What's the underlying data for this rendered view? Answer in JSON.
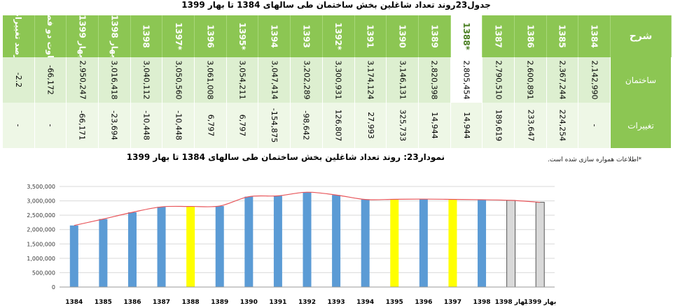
{
  "table": {
    "title": "جدول23روند تعداد شاغلین بخش ساختمان طی سالهای 1384 تا بهار 1399",
    "header_label": "شرح",
    "row_labels": [
      "ساختمان",
      "تغییرات"
    ],
    "columns": [
      {
        "header": "1384",
        "v1": "2,142,990",
        "v2": "-"
      },
      {
        "header": "1385",
        "v1": "2,367,244",
        "v2": "224,254"
      },
      {
        "header": "1386",
        "v1": "2,600,891",
        "v2": "233,647"
      },
      {
        "header": "1387",
        "v1": "2,790,510",
        "v2": "189,619"
      },
      {
        "header": "1388*",
        "v1": "2,805,454",
        "v2": "14,944",
        "highlight": true
      },
      {
        "header": "1389",
        "v1": "2,820,398",
        "v2": "14,944"
      },
      {
        "header": "1390",
        "v1": "3,146,131",
        "v2": "325,733"
      },
      {
        "header": "1391",
        "v1": "3,174,124",
        "v2": "27,993"
      },
      {
        "header": "1392*",
        "v1": "3,300,931",
        "v2": "126,807"
      },
      {
        "header": "1393",
        "v1": "3,202,289",
        "v2": "-98,642"
      },
      {
        "header": "1394",
        "v1": "3,047,414",
        "v2": "-154,875"
      },
      {
        "header": "1395*",
        "v1": "3,054,211",
        "v2": "6,797"
      },
      {
        "header": "1396",
        "v1": "3,061,008",
        "v2": "6,797"
      },
      {
        "header": "1397*",
        "v1": "3,050,560",
        "v2": "-10,448"
      },
      {
        "header": "1398",
        "v1": "3,040,112",
        "v2": "-10,448"
      },
      {
        "header": "بهار 1398",
        "v1": "3,016,418",
        "v2": "-23,694"
      },
      {
        "header": "بهار 1399",
        "v1": "2,950,247",
        "v2": "-66,171"
      },
      {
        "header": "تفاوت دو فصل",
        "v1": "-66,172",
        "v2": "-"
      },
      {
        "header": "درصد تغییرات",
        "v1": "-2.2",
        "v2": "-"
      }
    ]
  },
  "note": "*اطلاعات همواره سازی شده است.",
  "chart_data": {
    "type": "bar",
    "title": "نمودار23: روند تعداد شاغلین بخش ساختمان طی سالهای 1384 تا بهار 1399",
    "categories": [
      "1384",
      "1385",
      "1386",
      "1387",
      "1388",
      "1389",
      "1390",
      "1391",
      "1392",
      "1393",
      "1394",
      "1395",
      "1396",
      "1397",
      "1398",
      "بهار 1398",
      "بهار 1399"
    ],
    "values": [
      2142990,
      2367244,
      2600891,
      2790510,
      2805454,
      2820398,
      3146131,
      3174124,
      3300931,
      3202289,
      3047414,
      3054211,
      3061008,
      3050560,
      3040112,
      3016418,
      2950247
    ],
    "bar_kinds": [
      "blue",
      "blue",
      "blue",
      "blue",
      "yellow",
      "blue",
      "blue",
      "blue",
      "blue",
      "blue",
      "blue",
      "yellow",
      "blue",
      "yellow",
      "blue",
      "gray",
      "gray"
    ],
    "colors": {
      "blue": "#5b9bd5",
      "yellow": "#ffff00",
      "gray": "#d9d9d9",
      "trend": "#e8555a",
      "grid": "#d9d9d9"
    },
    "ylim": [
      0,
      3500000
    ],
    "yticks": [
      "0",
      "500,000",
      "1,000,000",
      "1,500,000",
      "2,000,000",
      "2,500,000",
      "3,000,000",
      "3,500,000"
    ],
    "trendline": true
  }
}
